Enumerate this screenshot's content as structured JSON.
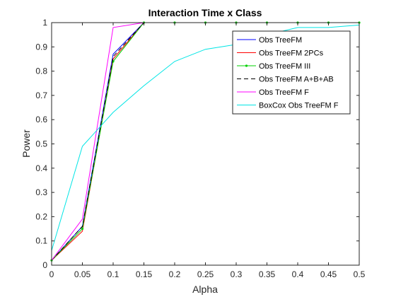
{
  "chart_data": {
    "type": "line",
    "title": "Interaction Time x Class",
    "xlabel": "Alpha",
    "ylabel": "Power",
    "xlim": [
      0,
      0.5
    ],
    "ylim": [
      0,
      1
    ],
    "xticks": [
      "0",
      "0.05",
      "0.1",
      "0.15",
      "0.2",
      "0.25",
      "0.3",
      "0.35",
      "0.4",
      "0.45",
      "0.5"
    ],
    "yticks": [
      "0",
      "0.1",
      "0.2",
      "0.3",
      "0.4",
      "0.5",
      "0.6",
      "0.7",
      "0.8",
      "0.9",
      "1"
    ],
    "grid": false,
    "legend_position": "top-right",
    "x": [
      0.0,
      0.05,
      0.1,
      0.15,
      0.2,
      0.25,
      0.3,
      0.35,
      0.4,
      0.45,
      0.5
    ],
    "series": [
      {
        "name": "Obs TreeFM",
        "color": "#0000ff",
        "style": "solid",
        "values": [
          0.02,
          0.16,
          0.87,
          1.0,
          1.0,
          1.0,
          1.0,
          1.0,
          1.0,
          1.0,
          1.0
        ]
      },
      {
        "name": "Obs TreeFM 2PCs",
        "color": "#ff0000",
        "style": "solid",
        "values": [
          0.02,
          0.14,
          0.85,
          1.0,
          1.0,
          1.0,
          1.0,
          1.0,
          1.0,
          1.0,
          1.0
        ]
      },
      {
        "name": "Obs TreeFM III",
        "color": "#00d000",
        "style": "solid-point",
        "values": [
          0.02,
          0.15,
          0.84,
          1.0,
          1.0,
          1.0,
          1.0,
          1.0,
          1.0,
          1.0,
          1.0
        ]
      },
      {
        "name": "Obs TreeFM A+B+AB",
        "color": "#000000",
        "style": "dashed",
        "values": [
          0.02,
          0.16,
          0.86,
          1.0,
          1.0,
          1.0,
          1.0,
          1.0,
          1.0,
          1.0,
          1.0
        ]
      },
      {
        "name": "Obs TreeFM F",
        "color": "#ff00ff",
        "style": "solid",
        "values": [
          0.02,
          0.19,
          0.98,
          1.0,
          1.0,
          1.0,
          1.0,
          1.0,
          1.0,
          1.0,
          1.0
        ]
      },
      {
        "name": "BoxCox Obs TreeFM F",
        "color": "#00e5e5",
        "style": "solid",
        "values": [
          0.06,
          0.49,
          0.63,
          0.74,
          0.84,
          0.89,
          0.91,
          0.95,
          0.98,
          0.98,
          0.99
        ]
      }
    ]
  }
}
